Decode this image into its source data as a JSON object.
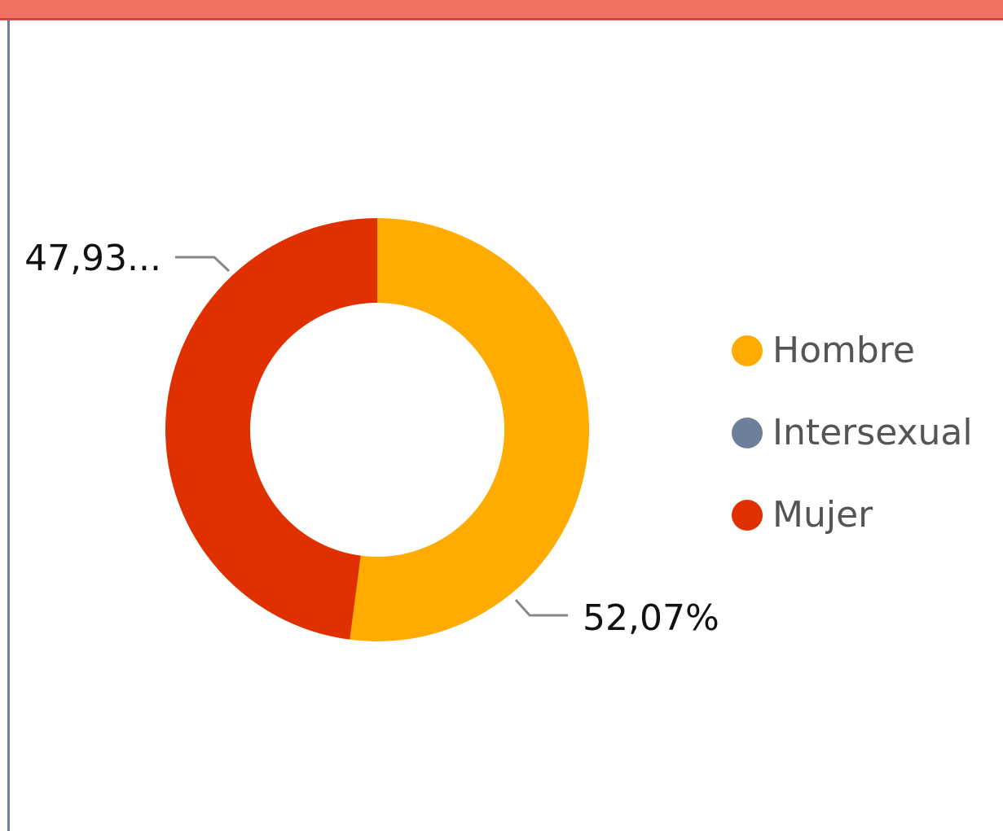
{
  "chart_data": {
    "type": "donut",
    "categories": [
      "Hombre",
      "Intersexual",
      "Mujer"
    ],
    "values": [
      52.07,
      0,
      47.93
    ],
    "value_labels": [
      "52,07%",
      null,
      "47,93..."
    ],
    "colors": [
      "#ffab00",
      "#6e7f9a",
      "#e03000"
    ]
  }
}
